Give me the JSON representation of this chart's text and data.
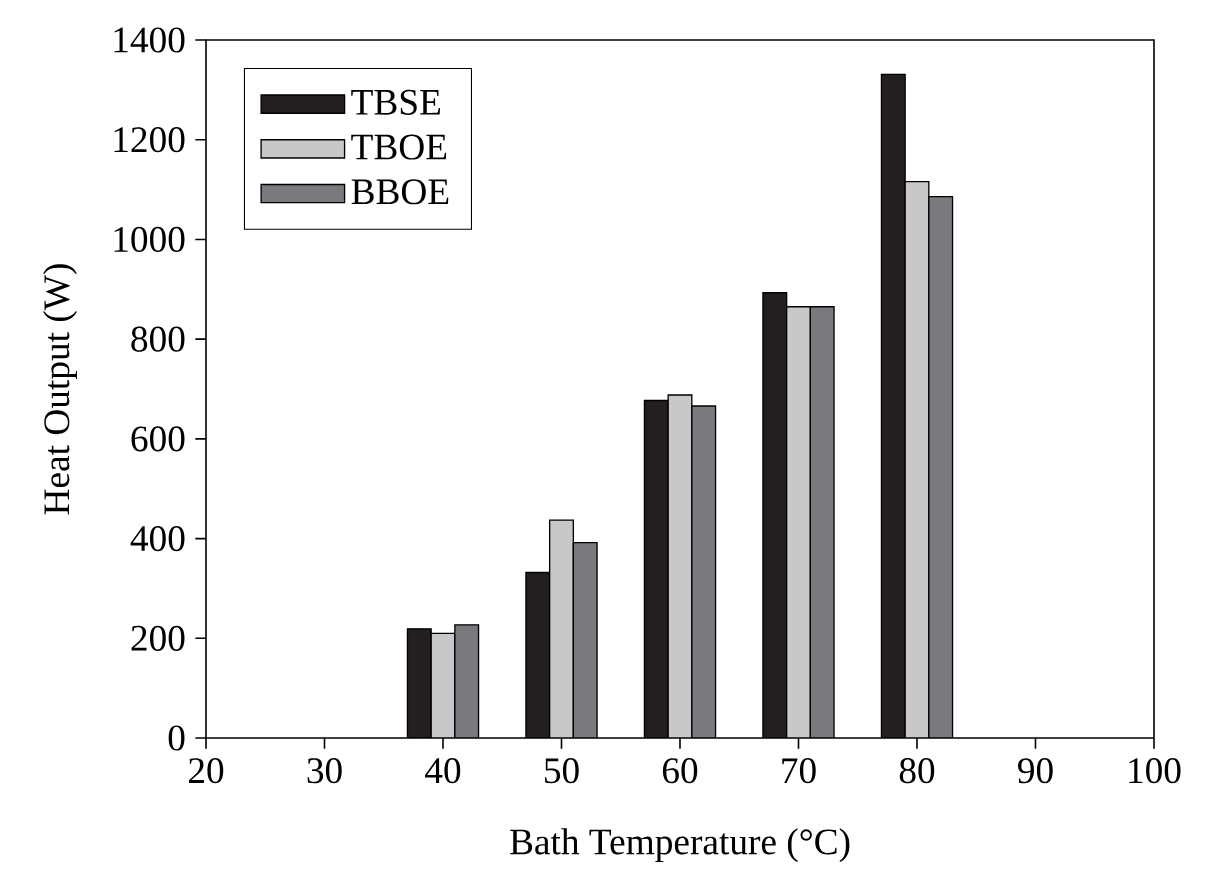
{
  "chart_data": {
    "type": "bar",
    "xlabel": "Bath Temperature (°C)",
    "ylabel": "Heat Output (W)",
    "x": [
      40,
      50,
      60,
      70,
      80
    ],
    "series": [
      {
        "name": "TBSE",
        "color": "#231f20",
        "values": [
          219,
          332,
          677,
          893,
          1331
        ]
      },
      {
        "name": "TBOE",
        "color": "#c8c8c8",
        "values": [
          210,
          437,
          688,
          865,
          1116
        ]
      },
      {
        "name": "BBOE",
        "color": "#7a7a7e",
        "values": [
          227,
          392,
          666,
          865,
          1086
        ]
      }
    ],
    "xlim": [
      20,
      100
    ],
    "ylim": [
      0,
      1400
    ],
    "xticks": [
      20,
      30,
      40,
      50,
      60,
      70,
      80,
      90,
      100
    ],
    "yticks": [
      0,
      200,
      400,
      600,
      800,
      1000,
      1200,
      1400
    ],
    "grid": false,
    "legend": "top left"
  }
}
